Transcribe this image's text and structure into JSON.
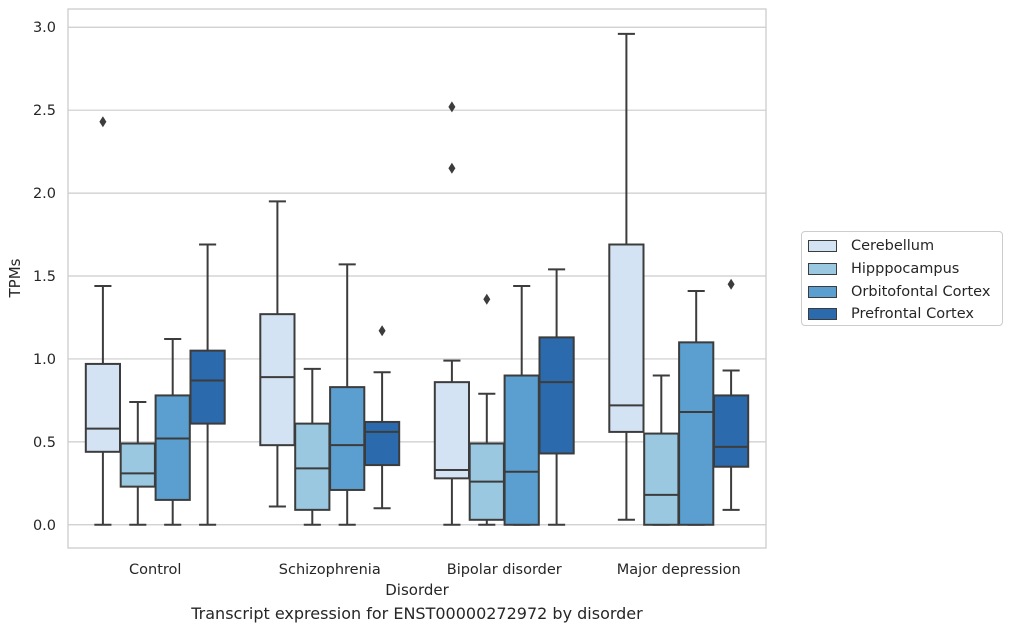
{
  "chart_data": {
    "type": "box",
    "caption": "Transcript expression for ENST00000272972 by disorder",
    "xlabel": "Disorder",
    "ylabel": "TPMs",
    "ylim": [
      -0.14,
      3.11
    ],
    "yticks": [
      "0.0",
      "0.5",
      "1.0",
      "1.5",
      "2.0",
      "2.5",
      "3.0"
    ],
    "ytick_values": [
      0,
      0.5,
      1.0,
      1.5,
      2.0,
      2.5,
      3.0
    ],
    "grid": "horizontal",
    "legend_position": "right",
    "categories": [
      "Control",
      "Schizophrenia",
      "Bipolar disorder",
      "Major depression"
    ],
    "series": [
      {
        "name": "Cerebellum",
        "color": "#d3e3f3",
        "boxes": [
          {
            "whislo": 0.0,
            "q1": 0.44,
            "med": 0.58,
            "q3": 0.97,
            "whishi": 1.44,
            "fliers": [
              2.43
            ]
          },
          {
            "whislo": 0.11,
            "q1": 0.48,
            "med": 0.89,
            "q3": 1.27,
            "whishi": 1.95,
            "fliers": []
          },
          {
            "whislo": 0.0,
            "q1": 0.28,
            "med": 0.33,
            "q3": 0.86,
            "whishi": 0.99,
            "fliers": [
              2.15,
              2.52
            ]
          },
          {
            "whislo": 0.03,
            "q1": 0.56,
            "med": 0.72,
            "q3": 1.69,
            "whishi": 2.96,
            "fliers": []
          }
        ]
      },
      {
        "name": "Hipppocampus",
        "color": "#9ac8e0",
        "boxes": [
          {
            "whislo": 0.0,
            "q1": 0.23,
            "med": 0.31,
            "q3": 0.49,
            "whishi": 0.74,
            "fliers": []
          },
          {
            "whislo": 0.0,
            "q1": 0.09,
            "med": 0.34,
            "q3": 0.61,
            "whishi": 0.94,
            "fliers": []
          },
          {
            "whislo": 0.0,
            "q1": 0.03,
            "med": 0.26,
            "q3": 0.49,
            "whishi": 0.79,
            "fliers": [
              1.36
            ]
          },
          {
            "whislo": 0.0,
            "q1": 0.0,
            "med": 0.18,
            "q3": 0.55,
            "whishi": 0.9,
            "fliers": []
          }
        ]
      },
      {
        "name": "Orbitofontal Cortex",
        "color": "#5a9fcf",
        "boxes": [
          {
            "whislo": 0.0,
            "q1": 0.15,
            "med": 0.52,
            "q3": 0.78,
            "whishi": 1.12,
            "fliers": []
          },
          {
            "whislo": 0.0,
            "q1": 0.21,
            "med": 0.48,
            "q3": 0.83,
            "whishi": 1.57,
            "fliers": []
          },
          {
            "whislo": 0.0,
            "q1": 0.0,
            "med": 0.32,
            "q3": 0.9,
            "whishi": 1.44,
            "fliers": []
          },
          {
            "whislo": 0.0,
            "q1": 0.0,
            "med": 0.68,
            "q3": 1.1,
            "whishi": 1.41,
            "fliers": []
          }
        ]
      },
      {
        "name": "Prefrontal Cortex",
        "color": "#2a6aad",
        "boxes": [
          {
            "whislo": 0.0,
            "q1": 0.61,
            "med": 0.87,
            "q3": 1.05,
            "whishi": 1.69,
            "fliers": []
          },
          {
            "whislo": 0.1,
            "q1": 0.36,
            "med": 0.56,
            "q3": 0.62,
            "whishi": 0.92,
            "fliers": [
              1.17
            ]
          },
          {
            "whislo": 0.0,
            "q1": 0.43,
            "med": 0.86,
            "q3": 1.13,
            "whishi": 1.54,
            "fliers": []
          },
          {
            "whislo": 0.09,
            "q1": 0.35,
            "med": 0.47,
            "q3": 0.78,
            "whishi": 0.93,
            "fliers": [
              1.45
            ]
          }
        ]
      }
    ]
  }
}
